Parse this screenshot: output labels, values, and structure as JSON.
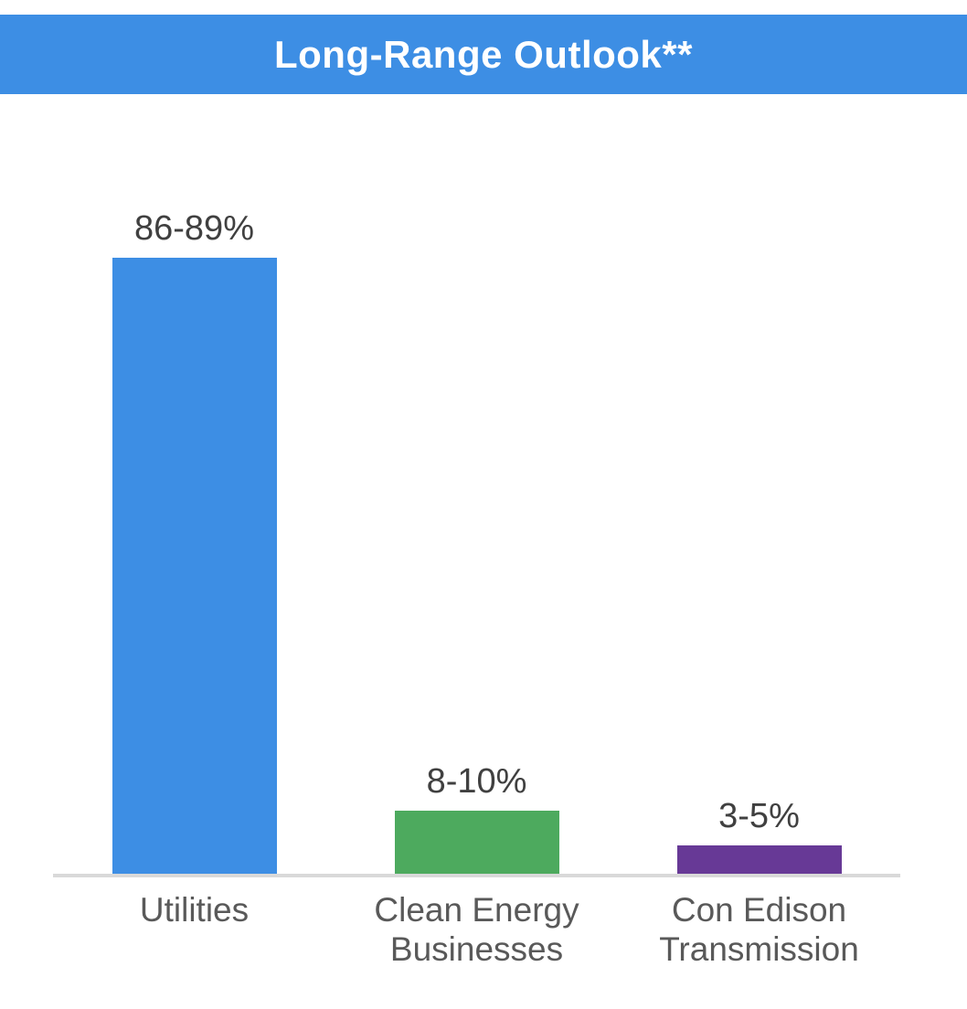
{
  "title": "Long-Range Outlook**",
  "colors": {
    "banner_background": "#3D8EE4",
    "title_text": "#FFFFFF",
    "axis_line": "#D9D9D9",
    "value_label_text": "#404040",
    "category_label_text": "#595959",
    "page_background": "#FFFFFF"
  },
  "chart_data": {
    "type": "bar",
    "title": "Long-Range Outlook**",
    "categories": [
      "Utilities",
      "Clean Energy Businesses",
      "Con Edison Transmission"
    ],
    "data_labels": [
      "86-89%",
      "8-10%",
      "3-5%"
    ],
    "values": [
      87.5,
      9,
      4
    ],
    "value_ranges_pct": [
      [
        86,
        89
      ],
      [
        8,
        10
      ],
      [
        3,
        5
      ]
    ],
    "bar_colors": [
      "#3D8EE4",
      "#4DAA5E",
      "#673996"
    ],
    "ylim": [
      0,
      100
    ],
    "xlabel": "",
    "ylabel": "",
    "grid": false,
    "legend": "none",
    "x_axis_line_visible": true,
    "y_axis_visible": false
  }
}
